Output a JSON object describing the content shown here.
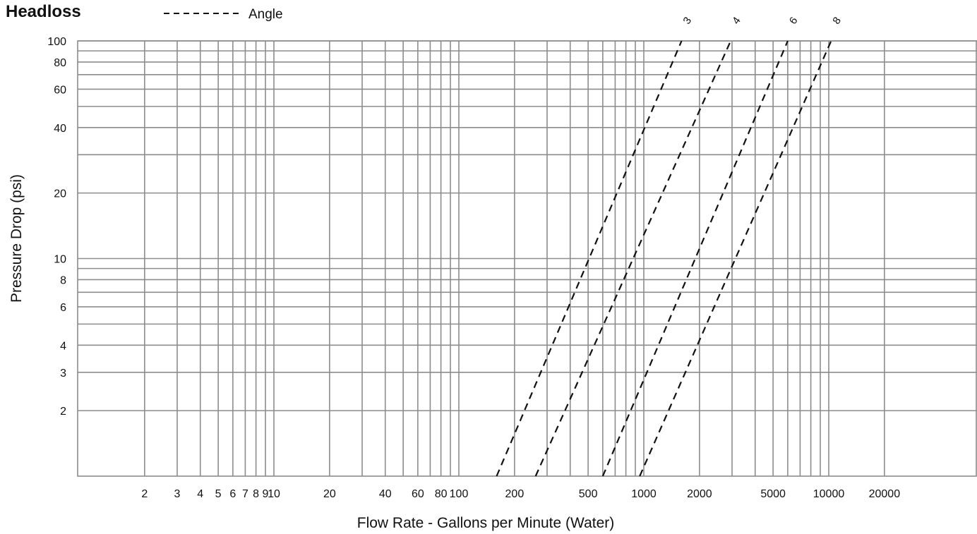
{
  "chart_data": {
    "type": "line",
    "title": "Headloss",
    "legend": [
      {
        "label": "Angle",
        "style": "dashed",
        "color": "#111111"
      }
    ],
    "legend_position": "top",
    "xlabel": "Flow Rate - Gallons per Minute (Water)",
    "ylabel": "Pressure Drop (psi)",
    "x_scale": "log",
    "y_scale": "log",
    "xlim": [
      1,
      40000
    ],
    "ylim": [
      1,
      100
    ],
    "grid": true,
    "x_ticks": [
      "2",
      "3",
      "4",
      "5",
      "6",
      "7",
      "8",
      "9",
      "10",
      "20",
      "40",
      "60",
      "80",
      "100",
      "200",
      "500",
      "1000",
      "2000",
      "5000",
      "10000",
      "20000"
    ],
    "x_tick_values": [
      2,
      3,
      4,
      5,
      6,
      7,
      8,
      9,
      10,
      20,
      40,
      60,
      80,
      100,
      200,
      500,
      1000,
      2000,
      5000,
      10000,
      20000
    ],
    "y_ticks": [
      "2",
      "3",
      "4",
      "6",
      "8",
      "10",
      "20",
      "40",
      "60",
      "80",
      "100"
    ],
    "y_tick_values": [
      2,
      3,
      4,
      6,
      8,
      10,
      20,
      40,
      60,
      80,
      100
    ],
    "x_gridlines": [
      2,
      3,
      4,
      5,
      6,
      7,
      8,
      9,
      10,
      20,
      30,
      40,
      50,
      60,
      70,
      80,
      90,
      100,
      200,
      300,
      400,
      500,
      600,
      700,
      800,
      900,
      1000,
      2000,
      3000,
      4000,
      5000,
      6000,
      7000,
      8000,
      9000,
      10000,
      20000
    ],
    "y_gridlines": [
      2,
      3,
      4,
      5,
      6,
      7,
      8,
      9,
      10,
      20,
      30,
      40,
      50,
      60,
      70,
      80,
      90,
      100
    ],
    "series": [
      {
        "name": "3",
        "x": [
          160,
          1600
        ],
        "y": [
          1,
          100
        ]
      },
      {
        "name": "4",
        "x": [
          260,
          2950
        ],
        "y": [
          1,
          100
        ]
      },
      {
        "name": "6",
        "x": [
          600,
          6000
        ],
        "y": [
          1,
          100
        ]
      },
      {
        "name": "8",
        "x": [
          950,
          10300
        ],
        "y": [
          1,
          100
        ]
      }
    ],
    "line_color": "#111111",
    "grid_color": "#8c8c8c"
  }
}
